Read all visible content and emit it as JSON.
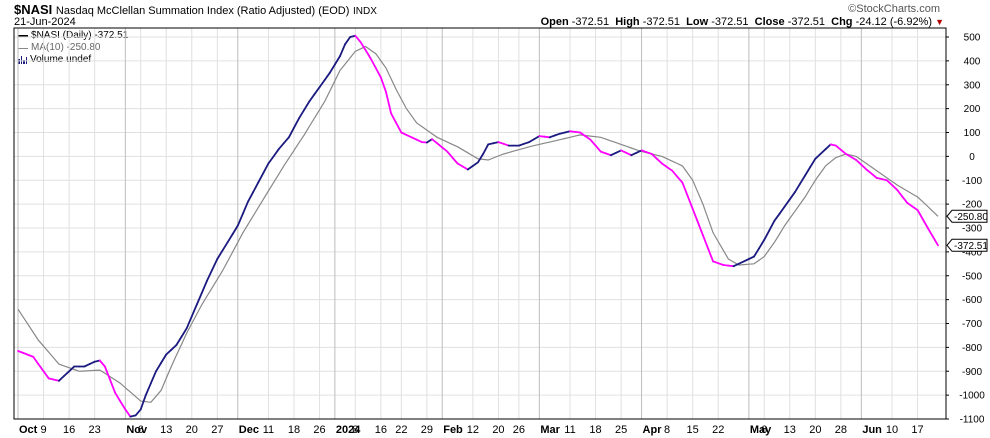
{
  "header": {
    "symbol": "$NASI",
    "description": "Nasdaq McClellan Summation Index (Ratio Adjusted) (EOD)",
    "exchange": "INDX",
    "date": "21-Jun-2024",
    "logo": "©StockCharts.com",
    "ohlc": {
      "open_label": "Open",
      "open": "-372.51",
      "high_label": "High",
      "high": "-372.51",
      "low_label": "Low",
      "low": "-372.51",
      "close_label": "Close",
      "close": "-372.51",
      "chg_label": "Chg",
      "chg": "-24.12 (-6.92%)"
    }
  },
  "legend": {
    "main": "$NASI (Daily) -372.51",
    "ma": "MA(10) -250.80",
    "volume": "Volume undef"
  },
  "colors": {
    "rising": "#1a1a80",
    "falling": "#ff00ff",
    "ma": "#888888",
    "grid": "#e0e0e0",
    "chg_arrow": "#b00000"
  },
  "chart_data": {
    "type": "line",
    "ylim": [
      -1100,
      500
    ],
    "yticks": [
      500,
      400,
      300,
      200,
      100,
      0,
      -100,
      -200,
      -300,
      -400,
      -500,
      -600,
      -700,
      -800,
      -900,
      -1000,
      -1100
    ],
    "x_labels": [
      {
        "label": "Oct",
        "i": 0,
        "bold": true
      },
      {
        "label": "9",
        "i": 5
      },
      {
        "label": "16",
        "i": 10
      },
      {
        "label": "23",
        "i": 15
      },
      {
        "label": "Nov",
        "i": 21,
        "bold": true
      },
      {
        "label": "6",
        "i": 24
      },
      {
        "label": "13",
        "i": 29
      },
      {
        "label": "20",
        "i": 34
      },
      {
        "label": "27",
        "i": 39
      },
      {
        "label": "Dec",
        "i": 43,
        "bold": true
      },
      {
        "label": "11",
        "i": 49
      },
      {
        "label": "18",
        "i": 54
      },
      {
        "label": "26",
        "i": 59
      },
      {
        "label": "2024",
        "i": 62,
        "bold": true
      },
      {
        "label": "8",
        "i": 66
      },
      {
        "label": "16",
        "i": 71
      },
      {
        "label": "22",
        "i": 75
      },
      {
        "label": "29",
        "i": 80
      },
      {
        "label": "Feb",
        "i": 83,
        "bold": true
      },
      {
        "label": "12",
        "i": 89
      },
      {
        "label": "20",
        "i": 94
      },
      {
        "label": "26",
        "i": 98
      },
      {
        "label": "Mar",
        "i": 102,
        "bold": true
      },
      {
        "label": "11",
        "i": 108
      },
      {
        "label": "18",
        "i": 113
      },
      {
        "label": "25",
        "i": 118
      },
      {
        "label": "Apr",
        "i": 122,
        "bold": true
      },
      {
        "label": "8",
        "i": 127
      },
      {
        "label": "15",
        "i": 132
      },
      {
        "label": "22",
        "i": 137
      },
      {
        "label": "May",
        "i": 143,
        "bold": true
      },
      {
        "label": "6",
        "i": 146
      },
      {
        "label": "13",
        "i": 151
      },
      {
        "label": "20",
        "i": 156
      },
      {
        "label": "28",
        "i": 161
      },
      {
        "label": "Jun",
        "i": 165,
        "bold": true
      },
      {
        "label": "10",
        "i": 171
      },
      {
        "label": "17",
        "i": 176
      }
    ],
    "series": [
      {
        "key": "nasi",
        "anchors": [
          [
            0,
            -815
          ],
          [
            3,
            -840
          ],
          [
            6,
            -930
          ],
          [
            8,
            -940
          ],
          [
            10,
            -900
          ],
          [
            11,
            -880
          ],
          [
            13,
            -880
          ],
          [
            15,
            -860
          ],
          [
            16,
            -855
          ],
          [
            17,
            -880
          ],
          [
            19,
            -990
          ],
          [
            21,
            -1060
          ],
          [
            22,
            -1090
          ],
          [
            23,
            -1085
          ],
          [
            24,
            -1060
          ],
          [
            25,
            -1000
          ],
          [
            27,
            -900
          ],
          [
            29,
            -830
          ],
          [
            31,
            -790
          ],
          [
            33,
            -720
          ],
          [
            35,
            -620
          ],
          [
            37,
            -520
          ],
          [
            39,
            -430
          ],
          [
            41,
            -360
          ],
          [
            43,
            -290
          ],
          [
            45,
            -190
          ],
          [
            47,
            -110
          ],
          [
            49,
            -30
          ],
          [
            51,
            30
          ],
          [
            53,
            80
          ],
          [
            55,
            160
          ],
          [
            57,
            230
          ],
          [
            59,
            290
          ],
          [
            61,
            350
          ],
          [
            63,
            420
          ],
          [
            64,
            470
          ],
          [
            65,
            500
          ],
          [
            66,
            505
          ],
          [
            67,
            480
          ],
          [
            69,
            410
          ],
          [
            71,
            330
          ],
          [
            72,
            270
          ],
          [
            73,
            180
          ],
          [
            75,
            100
          ],
          [
            77,
            80
          ],
          [
            79,
            60
          ],
          [
            80,
            58
          ],
          [
            81,
            72
          ],
          [
            82,
            55
          ],
          [
            84,
            20
          ],
          [
            86,
            -30
          ],
          [
            88,
            -55
          ],
          [
            90,
            -25
          ],
          [
            91,
            10
          ],
          [
            92,
            50
          ],
          [
            94,
            60
          ],
          [
            96,
            45
          ],
          [
            98,
            45
          ],
          [
            100,
            60
          ],
          [
            102,
            85
          ],
          [
            104,
            80
          ],
          [
            106,
            95
          ],
          [
            108,
            105
          ],
          [
            110,
            100
          ],
          [
            112,
            70
          ],
          [
            114,
            20
          ],
          [
            116,
            5
          ],
          [
            118,
            25
          ],
          [
            120,
            5
          ],
          [
            122,
            25
          ],
          [
            124,
            10
          ],
          [
            126,
            -30
          ],
          [
            128,
            -60
          ],
          [
            130,
            -110
          ],
          [
            132,
            -220
          ],
          [
            134,
            -330
          ],
          [
            136,
            -440
          ],
          [
            138,
            -455
          ],
          [
            140,
            -460
          ],
          [
            142,
            -440
          ],
          [
            144,
            -420
          ],
          [
            146,
            -350
          ],
          [
            148,
            -270
          ],
          [
            150,
            -210
          ],
          [
            152,
            -150
          ],
          [
            154,
            -80
          ],
          [
            156,
            -10
          ],
          [
            158,
            30
          ],
          [
            159,
            50
          ],
          [
            160,
            45
          ],
          [
            162,
            10
          ],
          [
            164,
            -15
          ],
          [
            166,
            -55
          ],
          [
            168,
            -90
          ],
          [
            170,
            -100
          ],
          [
            172,
            -140
          ],
          [
            174,
            -195
          ],
          [
            176,
            -225
          ],
          [
            178,
            -300
          ],
          [
            180,
            -372.51
          ]
        ]
      },
      {
        "key": "ma10",
        "anchors": [
          [
            0,
            -640
          ],
          [
            4,
            -770
          ],
          [
            8,
            -870
          ],
          [
            12,
            -900
          ],
          [
            16,
            -895
          ],
          [
            20,
            -950
          ],
          [
            24,
            -1025
          ],
          [
            26,
            -1030
          ],
          [
            28,
            -980
          ],
          [
            30,
            -880
          ],
          [
            33,
            -740
          ],
          [
            36,
            -620
          ],
          [
            40,
            -480
          ],
          [
            44,
            -320
          ],
          [
            48,
            -180
          ],
          [
            52,
            -40
          ],
          [
            56,
            90
          ],
          [
            60,
            230
          ],
          [
            63,
            360
          ],
          [
            66,
            440
          ],
          [
            68,
            460
          ],
          [
            70,
            430
          ],
          [
            72,
            370
          ],
          [
            74,
            280
          ],
          [
            76,
            200
          ],
          [
            78,
            140
          ],
          [
            82,
            80
          ],
          [
            86,
            40
          ],
          [
            90,
            -10
          ],
          [
            92,
            -15
          ],
          [
            95,
            10
          ],
          [
            100,
            40
          ],
          [
            105,
            65
          ],
          [
            110,
            90
          ],
          [
            114,
            80
          ],
          [
            118,
            50
          ],
          [
            122,
            20
          ],
          [
            126,
            0
          ],
          [
            130,
            -40
          ],
          [
            132,
            -100
          ],
          [
            134,
            -200
          ],
          [
            136,
            -320
          ],
          [
            139,
            -430
          ],
          [
            141,
            -455
          ],
          [
            144,
            -450
          ],
          [
            146,
            -420
          ],
          [
            148,
            -360
          ],
          [
            150,
            -290
          ],
          [
            154,
            -170
          ],
          [
            156,
            -100
          ],
          [
            158,
            -40
          ],
          [
            160,
            -5
          ],
          [
            162,
            10
          ],
          [
            164,
            0
          ],
          [
            166,
            -30
          ],
          [
            168,
            -60
          ],
          [
            172,
            -120
          ],
          [
            176,
            -170
          ],
          [
            178,
            -210
          ],
          [
            180,
            -250.8
          ]
        ]
      }
    ],
    "value_tags": [
      {
        "series": "ma10",
        "text": "-250.80",
        "value": -250.8
      },
      {
        "series": "nasi",
        "text": "-372.51",
        "value": -372.51
      }
    ]
  }
}
